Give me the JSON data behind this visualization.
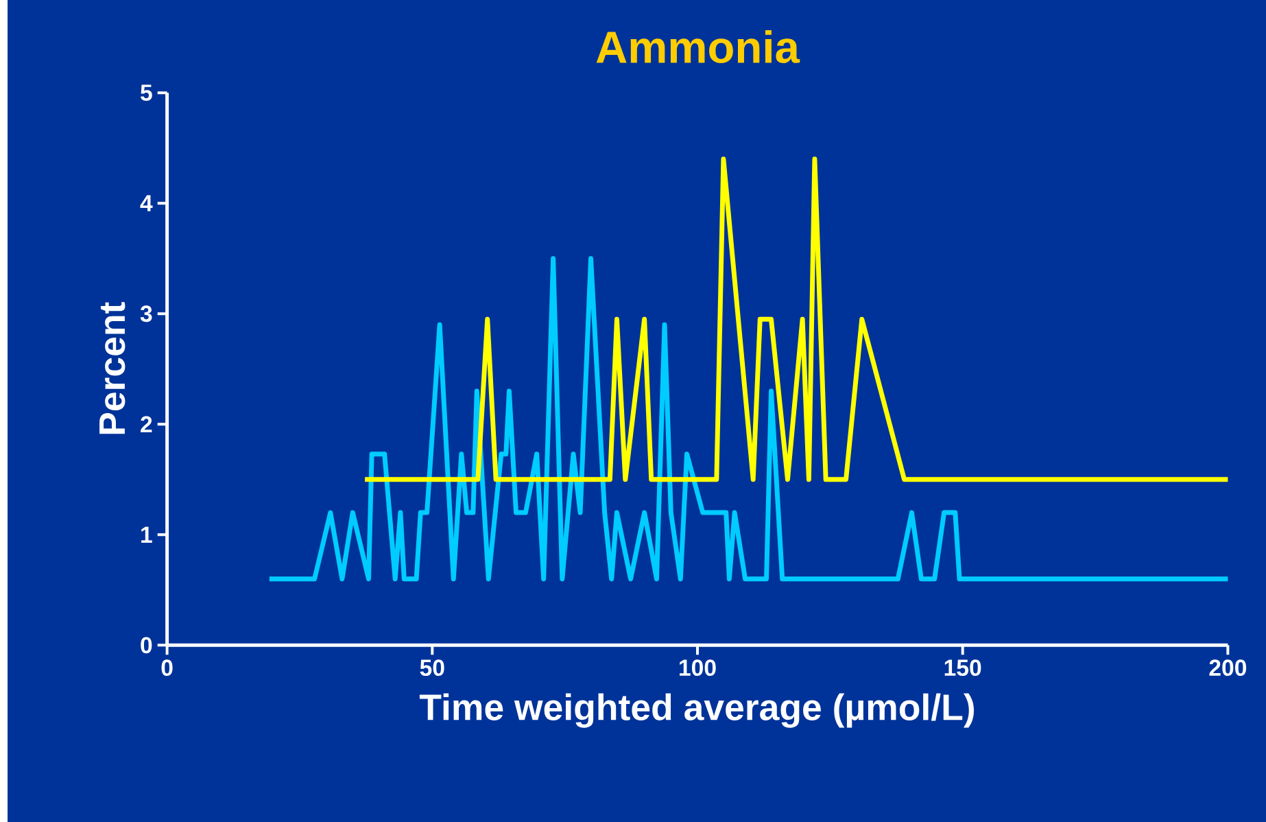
{
  "chart_data": {
    "type": "line",
    "title": "Ammonia",
    "xlabel": "Time weighted average (µmol/L)",
    "ylabel": "Percent",
    "xlim": [
      0,
      200
    ],
    "ylim": [
      0,
      5
    ],
    "xticks": [
      0,
      50,
      100,
      150,
      200
    ],
    "yticks": [
      0,
      1,
      2,
      3,
      4,
      5
    ],
    "series": [
      {
        "color": "#00ccff",
        "x": [
          19.3,
          27.8,
          30.8,
          33,
          35,
          38,
          38.6,
          41,
          43,
          44,
          44.7,
          47,
          47.8,
          49,
          51.4,
          54,
          55.5,
          56.5,
          57.7,
          58.4,
          60.6,
          63,
          63.9,
          64.5,
          65.8,
          67.6,
          69.7,
          71,
          72.8,
          74.5,
          76.6,
          77.9,
          79.9,
          82.5,
          83.8,
          84.8,
          87.4,
          90,
          92.3,
          93.8,
          95,
          96.8,
          98,
          101,
          105.4,
          106,
          107,
          109,
          113,
          113.9,
          116,
          137.8,
          140.4,
          142.2,
          144.7,
          146.5,
          148.6,
          149.4,
          200
        ],
        "values": [
          0.6,
          0.6,
          1.2,
          0.6,
          1.2,
          0.6,
          1.73,
          1.73,
          0.6,
          1.2,
          0.6,
          0.6,
          1.2,
          1.2,
          2.9,
          0.6,
          1.73,
          1.2,
          1.2,
          2.3,
          0.6,
          1.73,
          1.73,
          2.3,
          1.2,
          1.2,
          1.73,
          0.6,
          3.5,
          0.6,
          1.73,
          1.2,
          3.5,
          1.2,
          0.6,
          1.2,
          0.6,
          1.2,
          0.6,
          2.9,
          1.2,
          0.6,
          1.73,
          1.2,
          1.2,
          0.6,
          1.2,
          0.6,
          0.6,
          2.3,
          0.6,
          0.6,
          1.2,
          0.6,
          0.6,
          1.2,
          1.2,
          0.6,
          0.6
        ]
      },
      {
        "color": "#ffff00",
        "x": [
          37.3,
          58.6,
          60.4,
          62,
          83.5,
          84.8,
          86.4,
          90,
          91.3,
          103.6,
          104.9,
          110.5,
          111.8,
          113.9,
          117,
          119.8,
          121,
          122.1,
          124.2,
          128,
          131,
          139,
          200
        ],
        "values": [
          1.5,
          1.5,
          2.95,
          1.5,
          1.5,
          2.95,
          1.5,
          2.95,
          1.5,
          1.5,
          4.4,
          1.5,
          2.95,
          2.95,
          1.5,
          2.95,
          1.5,
          4.4,
          1.5,
          1.5,
          2.95,
          1.5,
          1.5
        ]
      }
    ]
  }
}
